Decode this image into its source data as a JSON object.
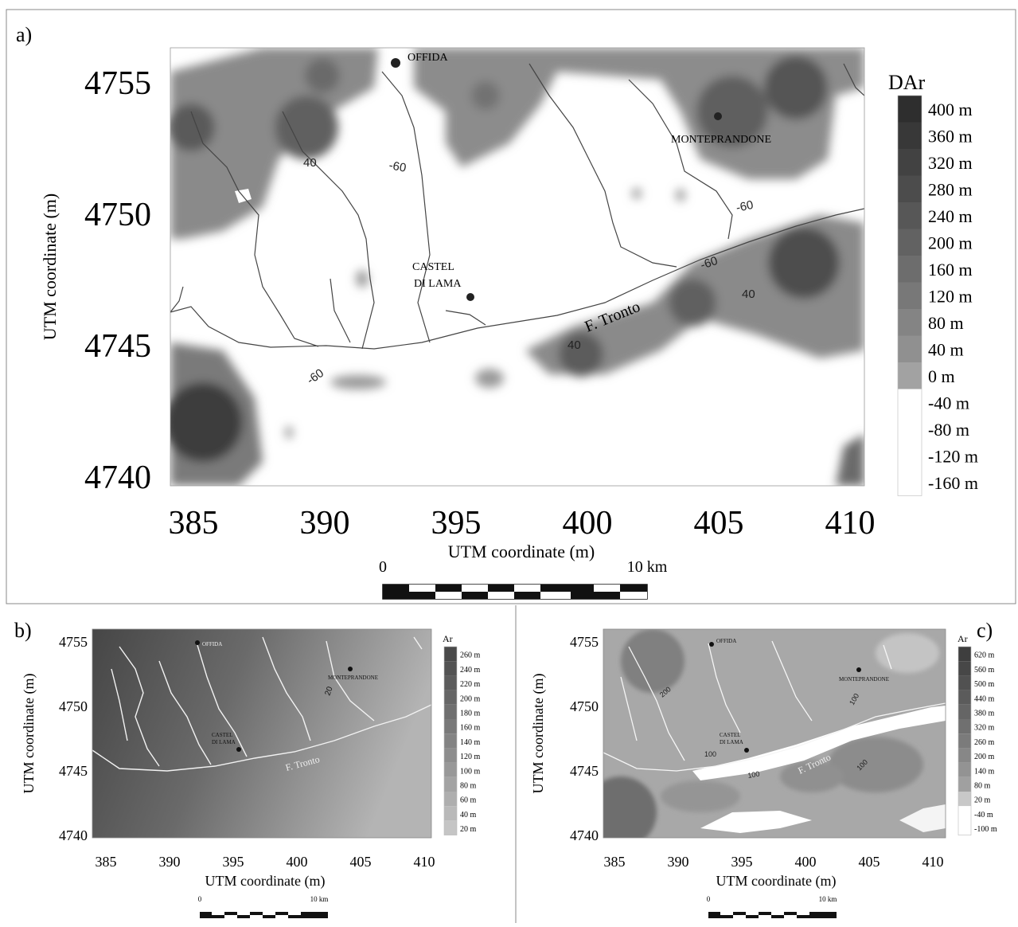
{
  "panel_a": {
    "label": "a)",
    "y_ticks": [
      "4755",
      "4750",
      "4745",
      "4740"
    ],
    "x_ticks": [
      "385",
      "390",
      "395",
      "400",
      "405",
      "410"
    ],
    "x_label": "UTM coordinate (m)",
    "y_label": "UTM coordinate (m)",
    "legend_title": "DAr",
    "legend_labels": [
      "400 m",
      "360 m",
      "320 m",
      "280 m",
      "240 m",
      "200 m",
      "160 m",
      "120 m",
      "80 m",
      "40 m",
      "0 m",
      "-40 m",
      "-80 m",
      "-120 m",
      "-160 m"
    ],
    "legend_colors": [
      "#2e2e2e",
      "#383838",
      "#424242",
      "#4c4c4c",
      "#575757",
      "#626262",
      "#6d6d6d",
      "#787878",
      "#848484",
      "#909090",
      "#a2a2a2",
      "#ffffff",
      "#ffffff",
      "#ffffff",
      "#ffffff"
    ],
    "scale_start": "0",
    "scale_end": "10 km",
    "places": {
      "offida": "OFFIDA",
      "monteprandone": "MONTEPRANDONE",
      "castel": "CASTEL",
      "dilama": "DI LAMA"
    },
    "river": "F. Tronto",
    "contours": [
      "40",
      "-60",
      "-60",
      "-60",
      "40",
      "40",
      "-60"
    ]
  },
  "panel_b": {
    "label": "b)",
    "y_ticks": [
      "4755",
      "4750",
      "4745",
      "4740"
    ],
    "x_ticks": [
      "385",
      "390",
      "395",
      "400",
      "405",
      "410"
    ],
    "x_label": "UTM coordinate (m)",
    "y_label": "UTM coordinate (m)",
    "legend_title": "Ar",
    "legend_labels": [
      "260 m",
      "240 m",
      "220 m",
      "200 m",
      "180 m",
      "160 m",
      "140 m",
      "120 m",
      "100 m",
      "80 m",
      "60 m",
      "40 m",
      "20 m"
    ],
    "legend_colors": [
      "#4a4a4a",
      "#535353",
      "#5c5c5c",
      "#666666",
      "#6f6f6f",
      "#797979",
      "#838383",
      "#8d8d8d",
      "#989898",
      "#a3a3a3",
      "#aeaeae",
      "#b9b9b9",
      "#c5c5c5"
    ],
    "scale_start": "0",
    "scale_end": "10 km",
    "places": {
      "offida": "OFFIDA",
      "monteprandone": "MONTEPRANDONE",
      "castel": "CASTEL",
      "dilama": "DI LAMA"
    },
    "river": "F. Tronto",
    "contours": [
      "20"
    ]
  },
  "panel_c": {
    "label": "c)",
    "y_ticks": [
      "4755",
      "4750",
      "4745",
      "4740"
    ],
    "x_ticks": [
      "385",
      "390",
      "395",
      "400",
      "405",
      "410"
    ],
    "x_label": "UTM coordinate (m)",
    "y_label": "UTM coordinate (m)",
    "legend_title": "Ar",
    "legend_labels": [
      "620 m",
      "560 m",
      "500 m",
      "440 m",
      "380 m",
      "320 m",
      "260 m",
      "200 m",
      "140 m",
      "80 m",
      "20 m",
      "-40 m",
      "-100 m"
    ],
    "legend_colors": [
      "#3e3e3e",
      "#474747",
      "#515151",
      "#5b5b5b",
      "#656565",
      "#707070",
      "#7b7b7b",
      "#878787",
      "#939393",
      "#a0a0a0",
      "#c8c8c8",
      "#ffffff",
      "#ffffff"
    ],
    "scale_start": "0",
    "scale_end": "10 km",
    "places": {
      "offida": "OFFIDA",
      "monteprandone": "MONTEPRANDONE",
      "castel": "CASTEL",
      "dilama": "DI LAMA"
    },
    "river": "F. Tronto",
    "contours": [
      "200",
      "100",
      "100",
      "100",
      "100"
    ]
  }
}
